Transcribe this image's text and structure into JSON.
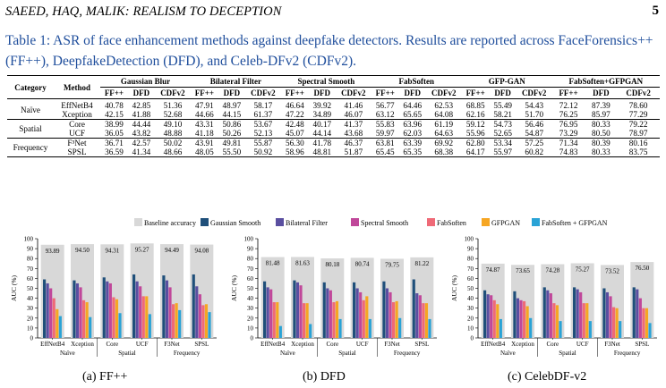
{
  "header": {
    "running_title": "SAEED, HAQ, MALIK: REALISM TO DECEPTION",
    "page_number": "5"
  },
  "caption": "Table 1: ASR of face enhancement methods against deepfake detectors. Results are reported across FaceForensics++ (FF++), DeepfakeDetection (DFD), and Celeb-DFv2 (CDFv2).",
  "table": {
    "col_category": "Category",
    "col_method": "Method",
    "groups": [
      "Gaussian Blur",
      "Bilateral Filter",
      "Spectral Smooth",
      "FabSoften",
      "GFP-GAN",
      "FabSoften+GFPGAN"
    ],
    "sub_headers": [
      "FF++",
      "DFD",
      "CDFv2"
    ],
    "categories": [
      "Naïve",
      "Spatial",
      "Frequency"
    ],
    "rows": [
      {
        "method": "EffNetB4",
        "values": [
          "40.78",
          "42.85",
          "51.36",
          "47.91",
          "48.97",
          "58.17",
          "46.64",
          "39.92",
          "41.46",
          "56.77",
          "64.46",
          "62.53",
          "68.85",
          "55.49",
          "54.43",
          "72.12",
          "87.39",
          "78.60"
        ]
      },
      {
        "method": "Xception",
        "values": [
          "42.15",
          "41.88",
          "52.68",
          "44.66",
          "44.15",
          "61.37",
          "47.22",
          "34.89",
          "46.07",
          "63.12",
          "65.65",
          "64.08",
          "62.16",
          "58.21",
          "51.70",
          "76.25",
          "85.97",
          "77.29"
        ]
      },
      {
        "method": "Core",
        "values": [
          "38.99",
          "44.44",
          "49.10",
          "43.31",
          "50.86",
          "53.67",
          "42.48",
          "40.17",
          "41.37",
          "55.83",
          "63.96",
          "61.19",
          "59.12",
          "54.73",
          "56.46",
          "76.95",
          "80.33",
          "79.22"
        ]
      },
      {
        "method": "UCF",
        "values": [
          "36.05",
          "43.82",
          "48.88",
          "41.18",
          "50.26",
          "52.13",
          "45.07",
          "44.14",
          "43.68",
          "59.97",
          "62.03",
          "64.63",
          "55.96",
          "52.65",
          "54.87",
          "73.29",
          "80.50",
          "78.97"
        ]
      },
      {
        "method": "F³Net",
        "values": [
          "36.71",
          "42.57",
          "50.02",
          "43.91",
          "49.81",
          "55.87",
          "56.30",
          "41.78",
          "46.37",
          "63.81",
          "63.39",
          "69.92",
          "62.80",
          "53.34",
          "57.25",
          "71.34",
          "80.39",
          "80.16"
        ]
      },
      {
        "method": "SPSL",
        "values": [
          "36.59",
          "41.34",
          "48.66",
          "48.05",
          "55.50",
          "50.92",
          "58.96",
          "48.81",
          "51.87",
          "65.45",
          "65.35",
          "68.38",
          "64.17",
          "55.97",
          "60.82",
          "74.83",
          "80.33",
          "83.75"
        ]
      }
    ]
  },
  "legend": [
    {
      "label": "Baseline accuracy",
      "color": "#d8d8d8"
    },
    {
      "label": "Gaussian Smooth",
      "color": "#1f4f7a"
    },
    {
      "label": "Bilateral Filter",
      "color": "#5a4fa0"
    },
    {
      "label": "Spectral Smooth",
      "color": "#c0479a"
    },
    {
      "label": "FabSoften",
      "color": "#ef6a77"
    },
    {
      "label": "GFPGAN",
      "color": "#f6a623"
    },
    {
      "label": "FabSoften + GFPGAN",
      "color": "#2aa3d6"
    }
  ],
  "chart_data": [
    {
      "type": "bar",
      "caption": "(a) FF++",
      "ylabel": "AUC (%)",
      "ylim": [
        0,
        100
      ],
      "yticks": [
        "0",
        "10",
        "20",
        "30",
        "40",
        "50",
        "60",
        "70",
        "80",
        "90",
        "100"
      ],
      "categories": [
        "EffNetB4",
        "Xception",
        "Core",
        "UCF",
        "F3Net",
        "SPSL"
      ],
      "groups": [
        {
          "label": "Naïve",
          "span": 2
        },
        {
          "label": "Spatial",
          "span": 2
        },
        {
          "label": "Frequency",
          "span": 2
        }
      ],
      "baseline_values": [
        93.89,
        94.5,
        94.31,
        95.27,
        94.49,
        94.08
      ],
      "baseline_labels": [
        "93.89",
        "94.50",
        "94.31",
        "95.27",
        "94.49",
        "94.08"
      ],
      "series": [
        {
          "name": "Gaussian Smooth",
          "values": [
            59,
            58,
            61,
            64,
            63,
            64
          ]
        },
        {
          "name": "Bilateral Filter",
          "values": [
            55,
            55,
            57,
            57,
            58,
            52
          ]
        },
        {
          "name": "Spectral Smooth",
          "values": [
            50,
            51,
            55,
            52,
            51,
            44
          ]
        },
        {
          "name": "FabSoften",
          "values": [
            40,
            38,
            41,
            42,
            34,
            33
          ]
        },
        {
          "name": "GFPGAN",
          "values": [
            29,
            36,
            39,
            42,
            35,
            34
          ]
        },
        {
          "name": "FabSoften + GFPGAN",
          "values": [
            22,
            21,
            25,
            24,
            28,
            26
          ]
        }
      ]
    },
    {
      "type": "bar",
      "caption": "(b) DFD",
      "ylabel": "AUC (%)",
      "ylim": [
        0,
        100
      ],
      "yticks": [
        "0",
        "10",
        "20",
        "30",
        "40",
        "50",
        "60",
        "70",
        "80",
        "90",
        "100"
      ],
      "categories": [
        "EffNetB4",
        "Xception",
        "Core",
        "UCF",
        "F3Net",
        "SPSL"
      ],
      "groups": [
        {
          "label": "Naïve",
          "span": 2
        },
        {
          "label": "Spatial",
          "span": 2
        },
        {
          "label": "Frequency",
          "span": 2
        }
      ],
      "baseline_values": [
        81.48,
        81.63,
        80.18,
        80.74,
        79.75,
        81.22
      ],
      "baseline_labels": [
        "81.48",
        "81.63",
        "80.18",
        "80.74",
        "79.75",
        "81.22"
      ],
      "series": [
        {
          "name": "Gaussian Smooth",
          "values": [
            57,
            58,
            56,
            56,
            57,
            59
          ]
        },
        {
          "name": "Bilateral Filter",
          "values": [
            51,
            56,
            50,
            50,
            50,
            45
          ]
        },
        {
          "name": "Spectral Smooth",
          "values": [
            49,
            53,
            48,
            46,
            46,
            43
          ]
        },
        {
          "name": "FabSoften",
          "values": [
            36,
            35,
            36,
            38,
            36,
            35
          ]
        },
        {
          "name": "GFPGAN",
          "values": [
            36,
            35,
            37,
            42,
            37,
            35
          ]
        },
        {
          "name": "FabSoften + GFPGAN",
          "values": [
            12,
            14,
            19,
            19,
            20,
            19
          ]
        }
      ]
    },
    {
      "type": "bar",
      "caption": "(c) CelebDF-v2",
      "ylabel": "AUC (%)",
      "ylim": [
        0,
        100
      ],
      "yticks": [
        "0",
        "10",
        "20",
        "30",
        "40",
        "50",
        "60",
        "70",
        "80",
        "90",
        "100"
      ],
      "categories": [
        "EffNetB4",
        "Xception",
        "Core",
        "UCF",
        "F3Net",
        "SPSL"
      ],
      "groups": [
        {
          "label": "Naïve",
          "span": 2
        },
        {
          "label": "Spatial",
          "span": 2
        },
        {
          "label": "Frequency",
          "span": 2
        }
      ],
      "baseline_values": [
        74.87,
        73.65,
        74.28,
        75.27,
        73.52,
        76.5
      ],
      "baseline_labels": [
        "74.87",
        "73.65",
        "74.28",
        "75.27",
        "73.52",
        "76.50"
      ],
      "series": [
        {
          "name": "Gaussian Smooth",
          "values": [
            48,
            47,
            51,
            51,
            50,
            51
          ]
        },
        {
          "name": "Bilateral Filter",
          "values": [
            44,
            40,
            48,
            49,
            46,
            49
          ]
        },
        {
          "name": "Spectral Smooth",
          "values": [
            43,
            38,
            45,
            46,
            42,
            40
          ]
        },
        {
          "name": "FabSoften",
          "values": [
            38,
            37,
            35,
            35,
            31,
            30
          ]
        },
        {
          "name": "GFPGAN",
          "values": [
            34,
            32,
            33,
            35,
            30,
            30
          ]
        },
        {
          "name": "FabSoften + GFPGAN",
          "values": [
            19,
            20,
            17,
            17,
            17,
            15
          ]
        }
      ]
    }
  ]
}
